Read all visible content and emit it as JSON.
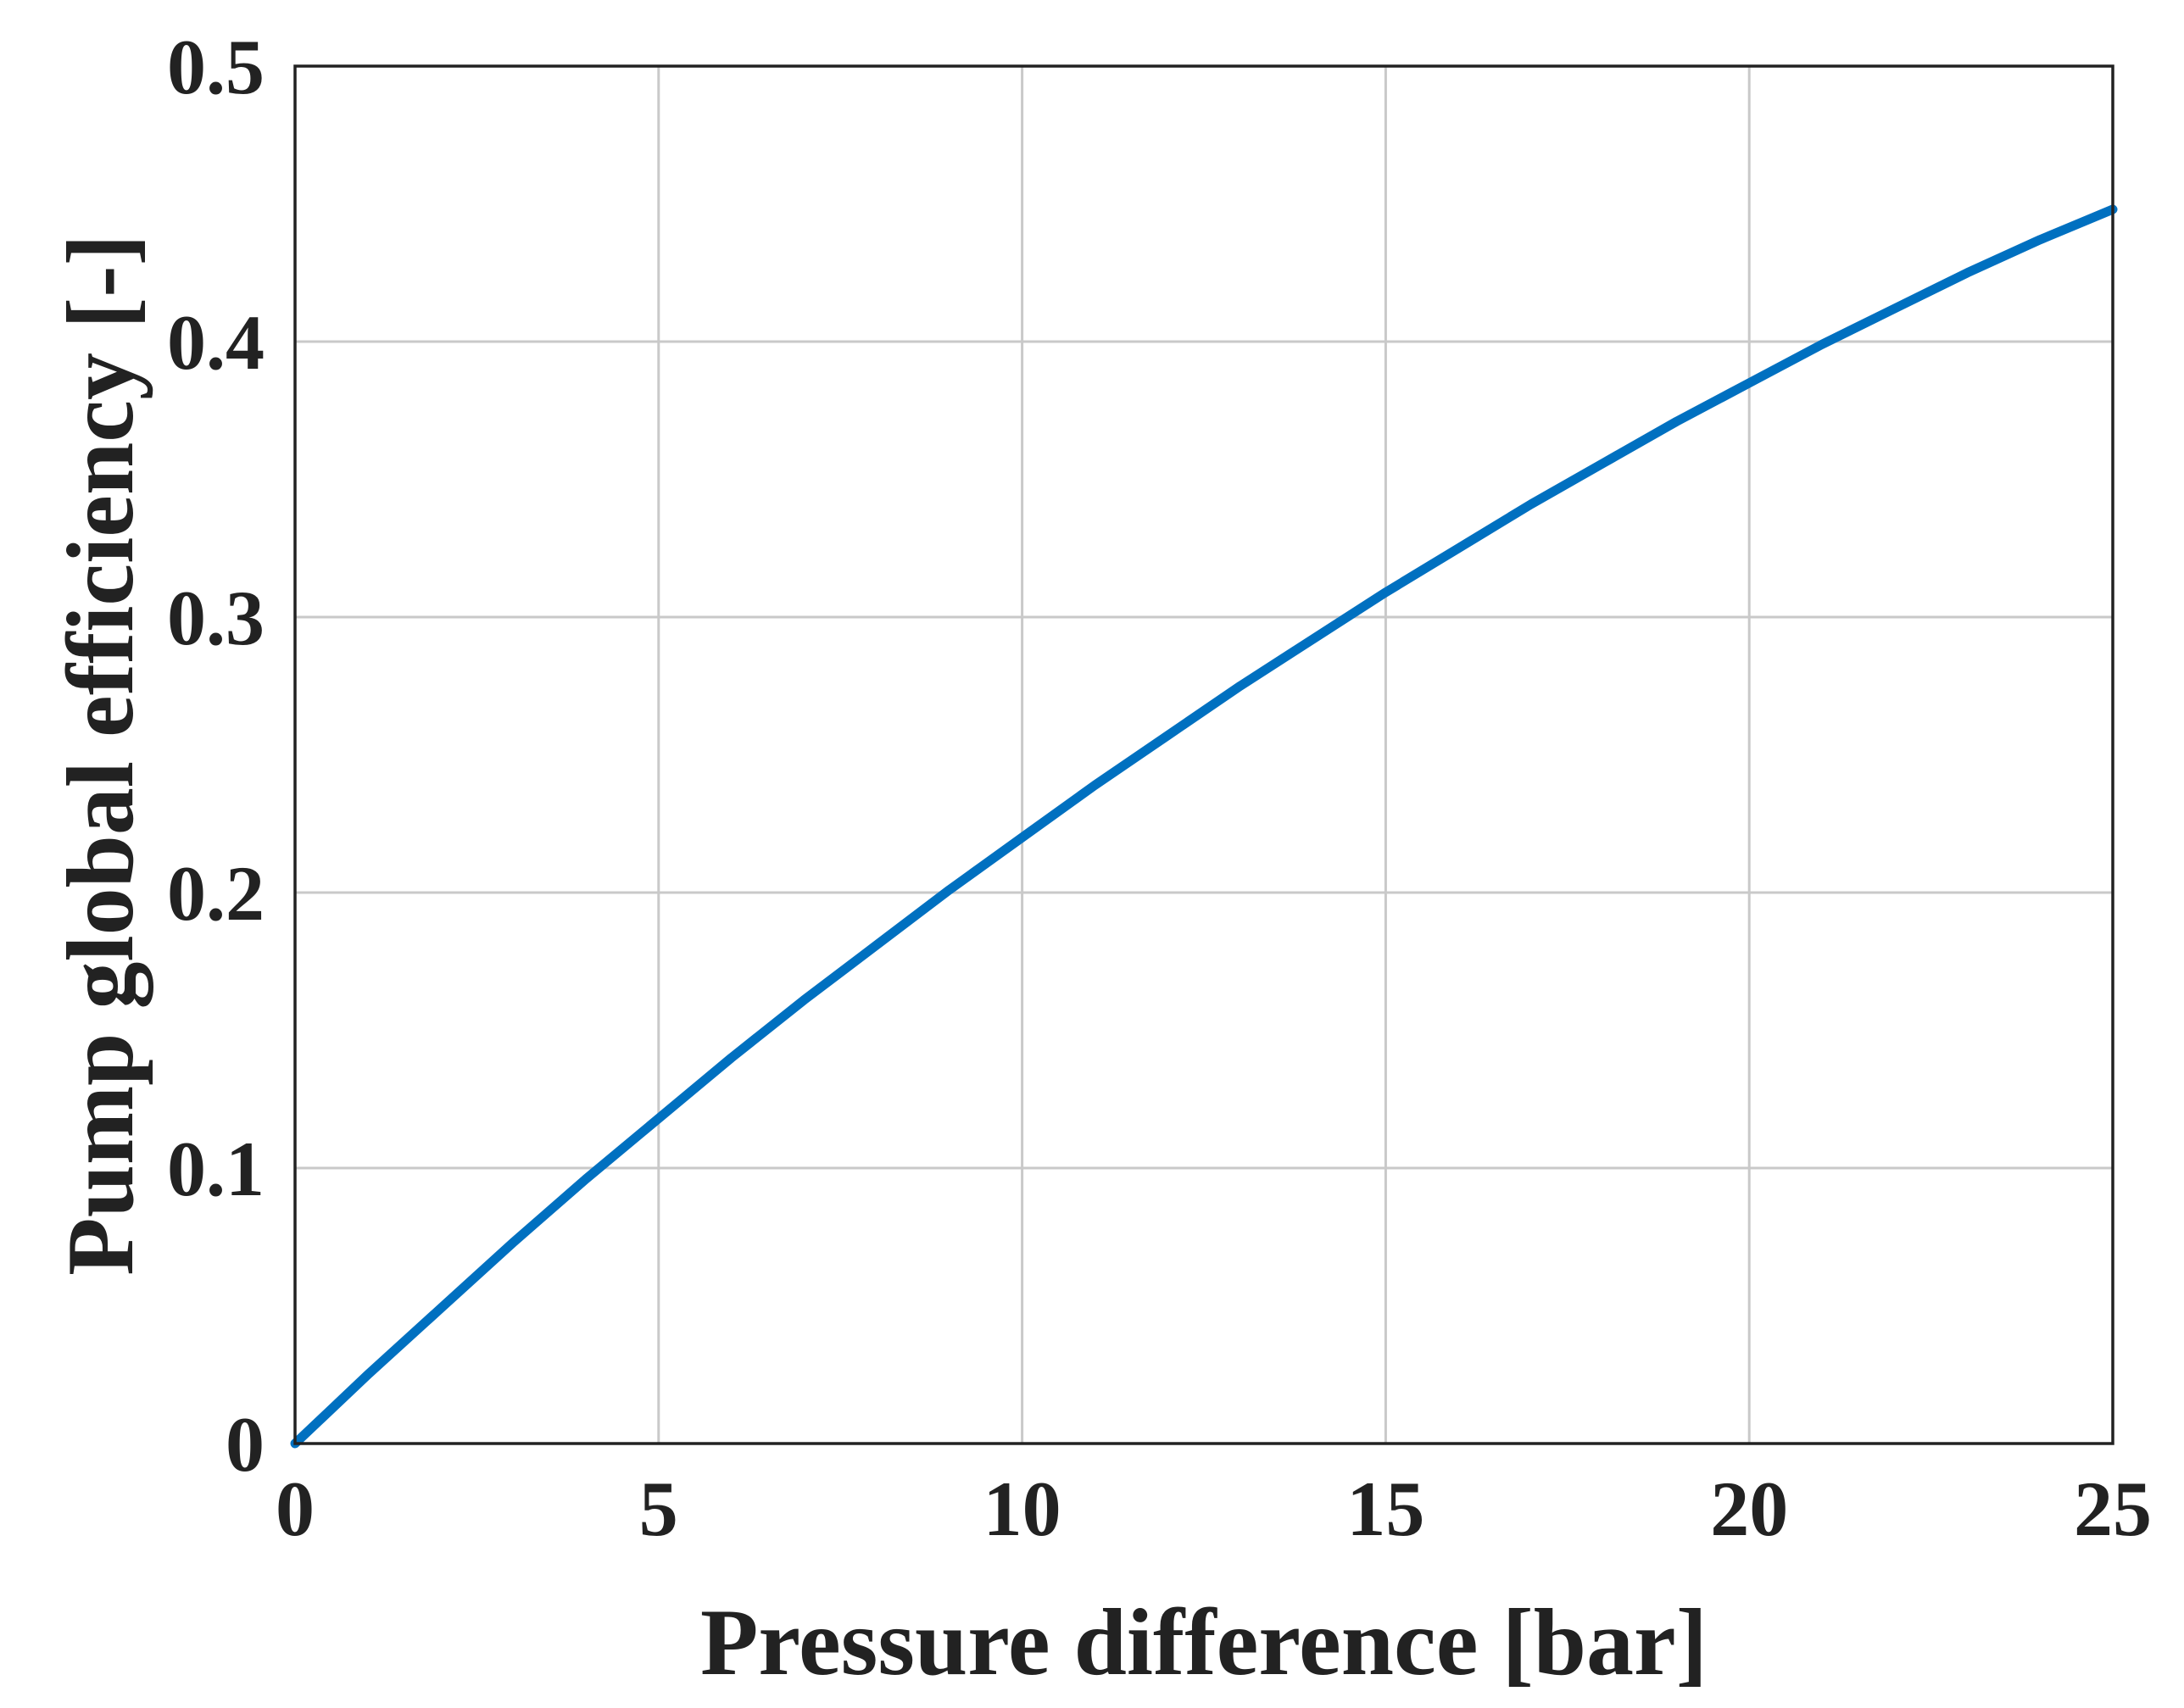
{
  "chart_data": {
    "type": "line",
    "xlabel": "Pressure difference [bar]",
    "ylabel": "Pump global efficiency [-]",
    "xlim": [
      0,
      25
    ],
    "ylim": [
      0,
      0.5
    ],
    "xticks": [
      0,
      5,
      10,
      15,
      20,
      25
    ],
    "yticks": [
      0,
      0.1,
      0.2,
      0.3,
      0.4,
      0.5
    ],
    "xtick_labels": [
      "0",
      "5",
      "10",
      "15",
      "20",
      "25"
    ],
    "ytick_labels": [
      "0",
      "0.1",
      "0.2",
      "0.3",
      "0.4",
      "0.5"
    ],
    "grid": true,
    "legend": "none",
    "series": [
      {
        "color": "#0070c0",
        "x": [
          0,
          1,
          2,
          3,
          4,
          5,
          6,
          7,
          8,
          9,
          10,
          11,
          12,
          13,
          14,
          15,
          16,
          17,
          18,
          19,
          20,
          21,
          22,
          23,
          24,
          25
        ],
        "y": [
          0.0,
          0.025,
          0.049,
          0.073,
          0.096,
          0.118,
          0.14,
          0.161,
          0.181,
          0.201,
          0.22,
          0.239,
          0.257,
          0.275,
          0.292,
          0.309,
          0.325,
          0.341,
          0.356,
          0.371,
          0.385,
          0.399,
          0.412,
          0.425,
          0.437,
          0.448
        ]
      }
    ]
  }
}
